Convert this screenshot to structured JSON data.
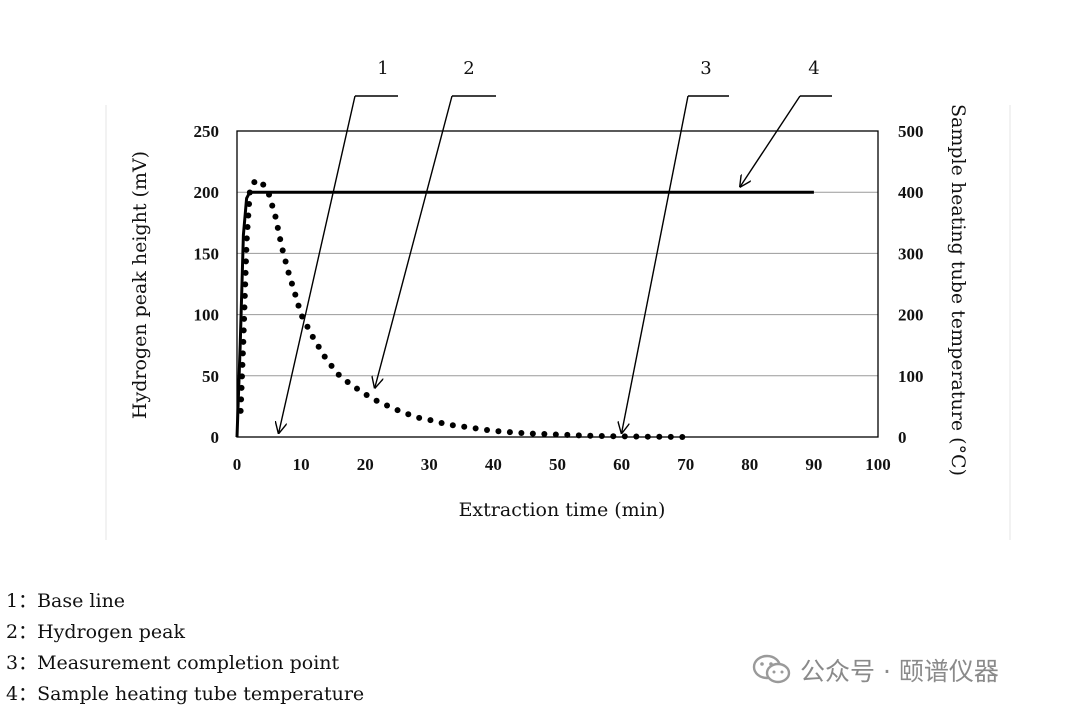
{
  "chart_data": {
    "type": "line",
    "xlabel": "Extraction time (min)",
    "ylabel_left": "Hydrogen peak height (mV)",
    "ylabel_right": "Sample heating tube temperature (°C)",
    "xlim": [
      0,
      100
    ],
    "ylim_left": [
      0,
      250
    ],
    "ylim_right": [
      0,
      500
    ],
    "x_ticks": [
      "0",
      "10",
      "20",
      "30",
      "40",
      "50",
      "60",
      "70",
      "80",
      "90",
      "100"
    ],
    "y_ticks_left": [
      "0",
      "50",
      "100",
      "150",
      "200",
      "250"
    ],
    "y_ticks_right": [
      "0",
      "100",
      "200",
      "300",
      "400",
      "500"
    ],
    "grid": "horizontal",
    "series": [
      {
        "axis": "right",
        "style": "solid",
        "x": [
          0.0,
          0.5,
          1.0,
          1.5,
          2.0,
          3.0,
          5.0,
          10,
          20,
          30,
          40,
          50,
          60,
          70,
          80,
          90
        ],
        "y": [
          0,
          150,
          330,
          390,
          400,
          400,
          400,
          400,
          400,
          400,
          400,
          400,
          400,
          400,
          400,
          400
        ]
      },
      {
        "axis": "left",
        "style": "dotted",
        "x": [
          0.5,
          1.0,
          1.5,
          2.0,
          2.5,
          3.0,
          3.5,
          4.0,
          5.0,
          6.0,
          7.0,
          8.0,
          9.0,
          10,
          12,
          14,
          16,
          18,
          20,
          22,
          25,
          28,
          30,
          33,
          36,
          40,
          45,
          50,
          55,
          60,
          65,
          70
        ],
        "y": [
          12,
          80,
          160,
          200,
          207,
          210,
          209,
          207,
          198,
          180,
          155,
          135,
          118,
          100,
          80,
          63,
          50,
          42,
          35,
          29,
          22,
          16,
          14,
          10,
          8,
          5,
          3,
          2,
          1,
          0.5,
          0.2,
          0
        ]
      }
    ],
    "callouts": [
      {
        "label": "1",
        "x": 6.5,
        "y_left": 0
      },
      {
        "label": "2",
        "x": 21.5,
        "y_left": 37
      },
      {
        "label": "3",
        "x": 60,
        "y_left": 0
      },
      {
        "label": "4",
        "x": 78.5,
        "y_right": 396
      }
    ]
  },
  "legend": [
    "1：Base line",
    "2：Hydrogen peak",
    "3：Measurement completion point",
    "4：Sample heating tube temperature"
  ],
  "watermark": {
    "text": "公众号 · 颐谱仪器",
    "icon": "wechat-icon"
  }
}
